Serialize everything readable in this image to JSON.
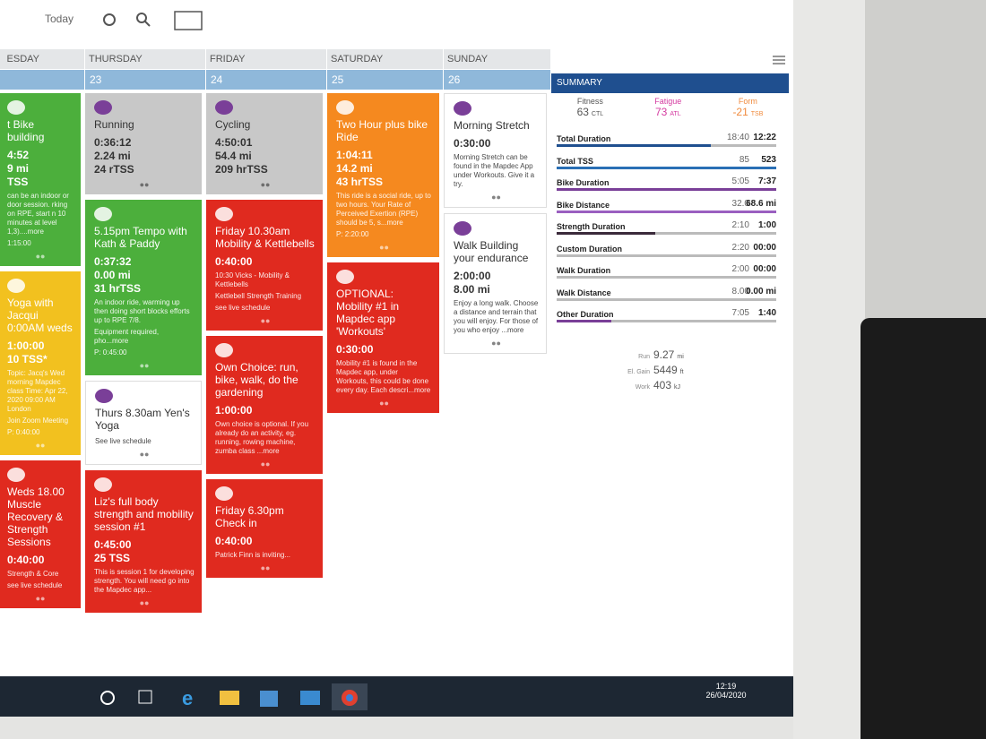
{
  "toolbar": {
    "today": "Today"
  },
  "days": {
    "names": [
      "ESDAY",
      "THURSDAY",
      "FRIDAY",
      "SATURDAY",
      "SUNDAY"
    ],
    "dates": [
      null,
      "23",
      "24",
      "25",
      "26"
    ]
  },
  "columns": [
    [
      {
        "color": "#4caf3c",
        "title": "t Bike building",
        "stats": [
          "4:52",
          "9 mi",
          "TSS"
        ],
        "notes": [
          "can be an indoor or door session. rking on RPE, start n 10 minutes at level 1,3)....more",
          "1:15:00"
        ]
      },
      {
        "color": "#f2c11f",
        "title": "Yoga with Jacqui 0:00AM weds",
        "stats": [
          "1:00:00",
          "10 TSS*"
        ],
        "notes": [
          "Topic: Jacq's Wed morning Mapdec class Time: Apr 22, 2020 09:00 AM London",
          "Join Zoom Meeting",
          "P: 0:40:00"
        ]
      },
      {
        "color": "#e02a1f",
        "title": "Weds 18.00 Muscle Recovery & Strength Sessions",
        "stats": [
          "0:40:00"
        ],
        "notes": [
          "Strength & Core",
          "see live schedule"
        ]
      }
    ],
    [
      {
        "color": "#c8c8c8",
        "title": "Running",
        "stats": [
          "0:36:12",
          "2.24 mi",
          "24 rTSS"
        ],
        "notes": []
      },
      {
        "color": "#4caf3c",
        "title": "5.15pm Tempo with Kath & Paddy",
        "stats": [
          "0:37:32",
          "0.00 mi",
          "31 hrTSS"
        ],
        "notes": [
          "An indoor ride, warming up then doing short blocks efforts up to RPE 7/8.",
          "Equipment required, pho...more",
          "P: 0:45:00"
        ]
      },
      {
        "color": "#ffffff",
        "title": "Thurs 8.30am Yen's Yoga",
        "stats": [],
        "notes": [
          "See live schedule"
        ]
      },
      {
        "color": "#e02a1f",
        "title": "Liz's full body strength and mobility session #1",
        "stats": [
          "0:45:00",
          "25 TSS"
        ],
        "notes": [
          "This is session 1 for developing strength. You will need go into the Mapdec app..."
        ]
      }
    ],
    [
      {
        "color": "#c8c8c8",
        "title": "Cycling",
        "stats": [
          "4:50:01",
          "54.4 mi",
          "209 hrTSS"
        ],
        "notes": []
      },
      {
        "color": "#e02a1f",
        "title": "Friday 10.30am Mobility & Kettlebells",
        "stats": [
          "0:40:00"
        ],
        "notes": [
          "10:30 Vicks - Mobility & Kettlebells",
          "Kettlebell Strength Training",
          "see live schedule"
        ]
      },
      {
        "color": "#e02a1f",
        "title": "Own Choice: run, bike, walk, do the gardening",
        "stats": [
          "1:00:00"
        ],
        "notes": [
          "Own choice is optional. If you already do an activity, eg. running, rowing machine, zumba class ...more"
        ]
      },
      {
        "color": "#e02a1f",
        "title": "Friday 6.30pm Check in",
        "stats": [
          "0:40:00"
        ],
        "notes": [
          "Patrick Finn is inviting..."
        ]
      }
    ],
    [
      {
        "color": "#f5891f",
        "title": "Two Hour plus bike Ride",
        "stats": [
          "1:04:11",
          "14.2 mi",
          "43 hrTSS"
        ],
        "notes": [
          "This ride is a social ride, up to two hours. Your Rate of Perceived Exertion (RPE) should be 5, s...more",
          "P: 2:20:00"
        ]
      },
      {
        "color": "#e02a1f",
        "title": "OPTIONAL: Mobility #1 in Mapdec app 'Workouts'",
        "stats": [
          "0:30:00"
        ],
        "notes": [
          "Mobility #1 is found in the Mapdec app, under Workouts, this could be done every day. Each descri...more"
        ]
      }
    ],
    [
      {
        "color": "#ffffff",
        "title": "Morning Stretch",
        "stats": [
          "0:30:00"
        ],
        "notes": [
          "Morning Stretch can be found in the Mapdec App under Workouts. Give it a try."
        ]
      },
      {
        "color": "#ffffff",
        "title": "Walk Building your endurance",
        "stats": [
          "2:00:00",
          "8.00 mi"
        ],
        "notes": [
          "Enjoy a long walk. Choose a distance and terrain that you will enjoy. For those of you who enjoy ...more"
        ]
      }
    ]
  ],
  "summary": {
    "title": "SUMMARY",
    "fitness": [
      {
        "label": "Fitness",
        "value": "63",
        "unit": "CTL",
        "color": "#555555"
      },
      {
        "label": "Fatigue",
        "value": "73",
        "unit": "ATL",
        "color": "#d43aa0"
      },
      {
        "label": "Form",
        "value": "-21",
        "unit": "TSB",
        "color": "#f08a3c"
      }
    ],
    "rows": [
      {
        "name": "Total Duration",
        "planned": "18:40",
        "completed": "12:22",
        "color": "#1f4f8f"
      },
      {
        "name": "Total TSS",
        "planned": "85",
        "completed": "523",
        "color": "#2a6fb5"
      },
      {
        "name": "Bike Duration",
        "planned": "5:05",
        "completed": "7:37",
        "color": "#7a3f98"
      },
      {
        "name": "Bike Distance",
        "planned": "32.0",
        "completed": "68.6 mi",
        "color": "#9a5fc0"
      },
      {
        "name": "Strength Duration",
        "planned": "2:10",
        "completed": "1:00",
        "color": "#3a2a3a"
      },
      {
        "name": "Custom Duration",
        "planned": "2:20",
        "completed": "00:00",
        "color": "#999999"
      },
      {
        "name": "Walk Duration",
        "planned": "2:00",
        "completed": "00:00",
        "color": "#999999"
      },
      {
        "name": "Walk Distance",
        "planned": "8.00",
        "completed": "0.00 mi",
        "color": "#999999"
      },
      {
        "name": "Other Duration",
        "planned": "7:05",
        "completed": "1:40",
        "color": "#7a3f98"
      }
    ],
    "totals": [
      {
        "label": "Run",
        "value": "9.27",
        "unit": "mi"
      },
      {
        "label": "El. Gain",
        "value": "5449",
        "unit": "ft"
      },
      {
        "label": "Work",
        "value": "403",
        "unit": "kJ"
      }
    ]
  },
  "taskbar": {
    "time": "12:19",
    "date": "26/04/2020"
  }
}
